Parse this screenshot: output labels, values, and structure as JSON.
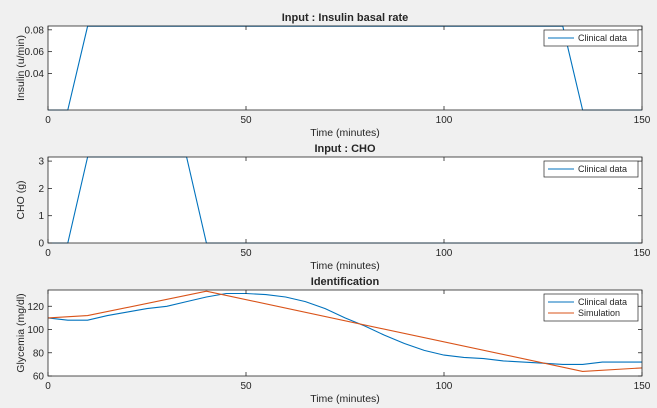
{
  "colors": {
    "figure_bg": "#f0f0f0",
    "axes_bg": "#ffffff",
    "axis": "#262626",
    "clinical": "#0072bd",
    "simulation": "#d95319"
  },
  "chart_data": [
    {
      "type": "line",
      "title": "Input : Insulin basal rate",
      "xlabel": "Time (minutes)",
      "ylabel": "Insulin (u/min)",
      "xlim": [
        0,
        150
      ],
      "ylim": [
        0.0065,
        0.0835
      ],
      "xticks": [
        0,
        50,
        100,
        150
      ],
      "yticks": [
        0.04,
        0.06,
        0.08
      ],
      "xtick_labels": [
        "0",
        "50",
        "100",
        "150"
      ],
      "ytick_labels": [
        "0.04",
        "0.06",
        "0.08"
      ],
      "legend": "top-right",
      "grid": false,
      "series": [
        {
          "name": "Clinical data",
          "color": "#0072bd",
          "x": [
            0,
            5,
            10,
            130,
            135,
            150
          ],
          "y": [
            0.0065,
            0.0065,
            0.0833,
            0.0833,
            0.0065,
            0.0065
          ]
        }
      ]
    },
    {
      "type": "line",
      "title": "Input : CHO",
      "xlabel": "Time (minutes)",
      "ylabel": "CHO (g)",
      "xlim": [
        0,
        150
      ],
      "ylim": [
        0,
        3.15
      ],
      "xticks": [
        0,
        50,
        100,
        150
      ],
      "yticks": [
        0,
        1,
        2,
        3
      ],
      "xtick_labels": [
        "0",
        "50",
        "100",
        "150"
      ],
      "ytick_labels": [
        "0",
        "1",
        "2",
        "3"
      ],
      "legend": "top-right",
      "grid": false,
      "series": [
        {
          "name": "Clinical data",
          "color": "#0072bd",
          "x": [
            0,
            5,
            10,
            35,
            40,
            150
          ],
          "y": [
            0,
            0,
            3.15,
            3.15,
            0,
            0
          ]
        }
      ]
    },
    {
      "type": "line",
      "title": "Identification",
      "xlabel": "Time (minutes)",
      "ylabel": "Glycemia (mg/dl)",
      "xlim": [
        0,
        150
      ],
      "ylim": [
        60,
        134
      ],
      "xticks": [
        0,
        50,
        100,
        150
      ],
      "yticks": [
        60,
        80,
        100,
        120
      ],
      "xtick_labels": [
        "0",
        "50",
        "100",
        "150"
      ],
      "ytick_labels": [
        "60",
        "80",
        "100",
        "120"
      ],
      "legend": "top-right",
      "grid": false,
      "series": [
        {
          "name": "Clinical data",
          "color": "#0072bd",
          "x": [
            0,
            5,
            10,
            15,
            20,
            25,
            30,
            35,
            40,
            45,
            50,
            55,
            60,
            65,
            70,
            75,
            80,
            85,
            90,
            95,
            100,
            105,
            110,
            115,
            120,
            125,
            130,
            135,
            140,
            145,
            150
          ],
          "y": [
            110,
            108,
            108,
            112,
            115,
            118,
            120,
            124,
            128,
            131,
            131,
            130,
            128,
            124,
            118,
            110,
            103,
            95,
            88,
            82,
            78,
            76,
            75,
            73,
            72,
            71,
            70,
            70,
            72,
            72,
            72
          ]
        },
        {
          "name": "Simulation",
          "color": "#d95319",
          "x": [
            0,
            10,
            40,
            135,
            150
          ],
          "y": [
            110,
            112,
            133,
            64,
            67
          ]
        }
      ]
    }
  ]
}
